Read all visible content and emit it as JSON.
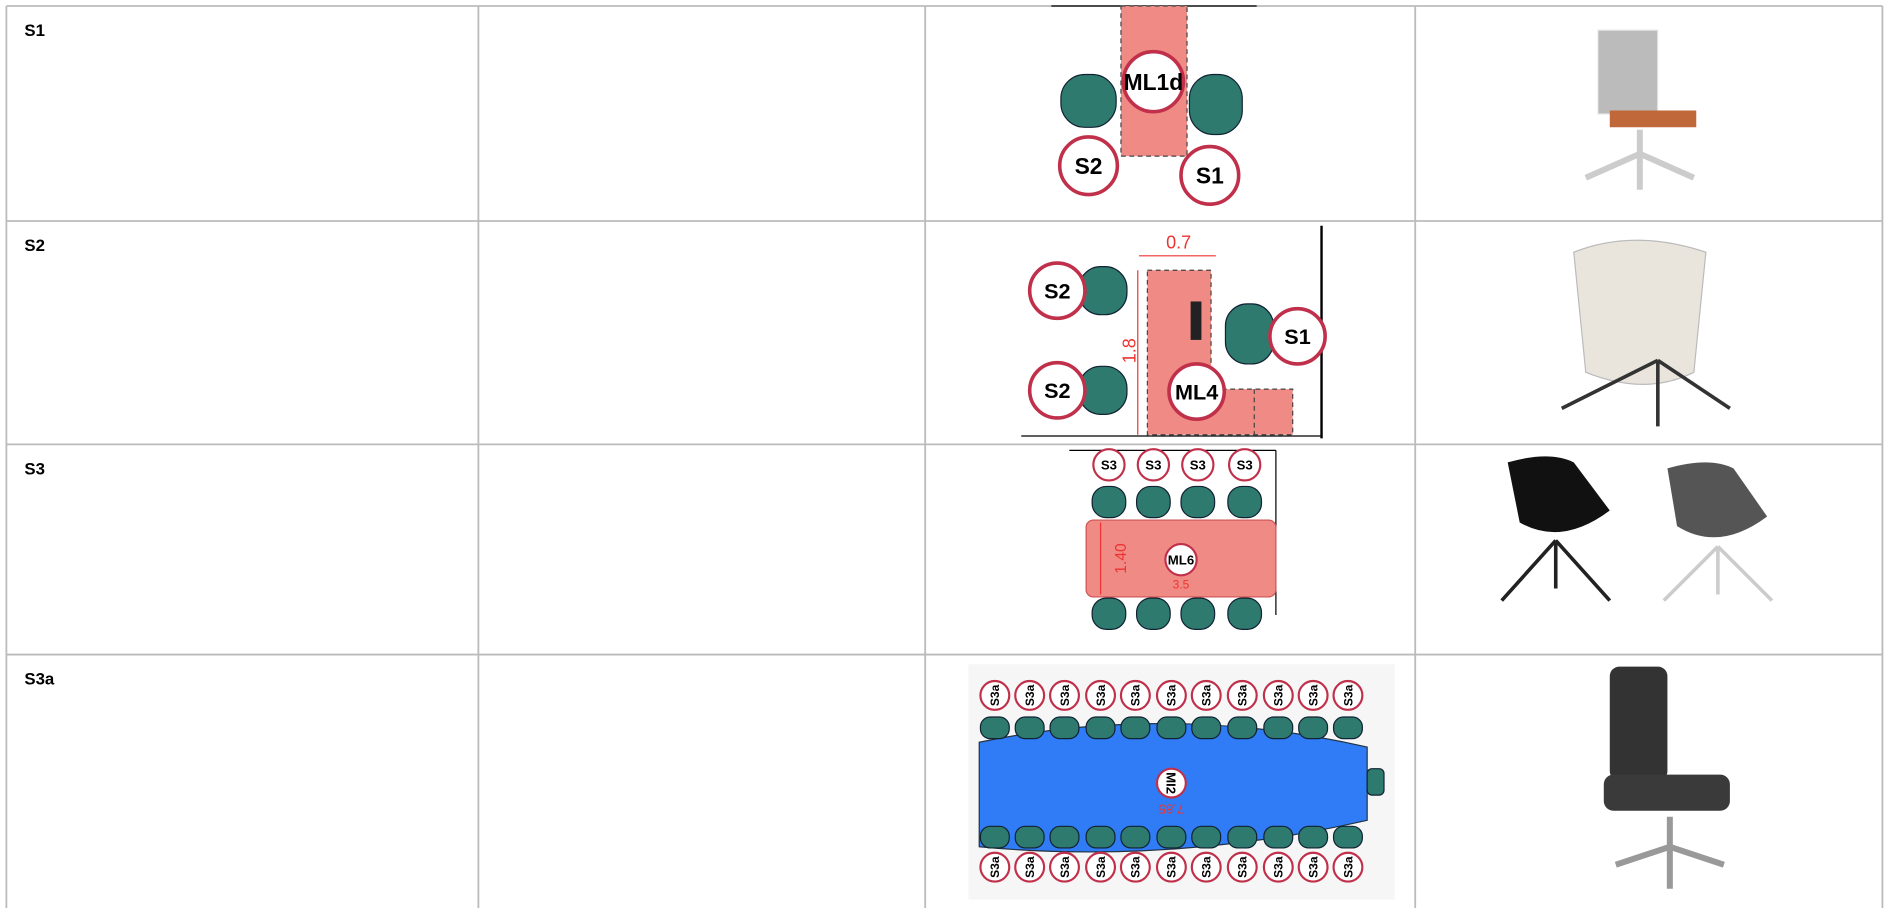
{
  "rows": [
    {
      "label": "S1",
      "plan": [
        "ML1d",
        "S2",
        "S1"
      ]
    },
    {
      "label": "S2",
      "plan": [
        "0.7",
        "1.8",
        "S2",
        "S2",
        "S1",
        "ML4"
      ]
    },
    {
      "label": "S3",
      "plan": [
        "S3",
        "S3",
        "S3",
        "S3",
        "1.40",
        "ML6",
        "3.5"
      ]
    },
    {
      "label": "S3a",
      "plan": [
        "S3a",
        "S3a",
        "S3a",
        "S3a",
        "S3a",
        "S3a",
        "S3a",
        "S3a",
        "S3a",
        "S3a",
        "S3a",
        "S3a",
        "S3a",
        "S3a",
        "S3a",
        "S3a",
        "S3a",
        "S3a",
        "S3a",
        "S3a",
        "S3a",
        "S3a",
        "MI2",
        "7.85"
      ]
    }
  ]
}
